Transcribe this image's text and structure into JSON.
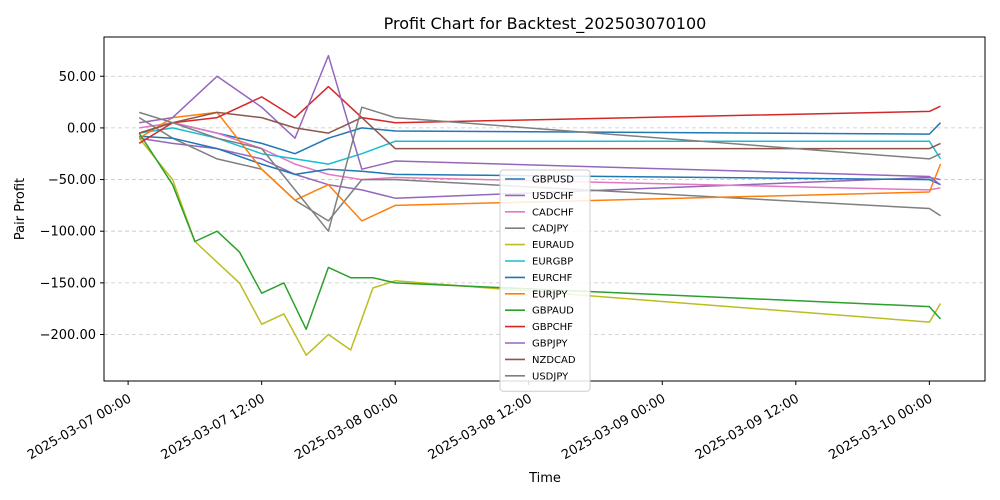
{
  "chart_data": {
    "type": "line",
    "title": "Profit Chart for Backtest_202503070100",
    "xlabel": "Time",
    "ylabel": "Pair Profit",
    "grid": "y-dashed",
    "legend_placement": "center-bottom",
    "xlim": [
      "2025-03-06 21:50",
      "2025-03-10 05:00"
    ],
    "ylim": [
      -245,
      88
    ],
    "xticks": [
      "2025-03-07 00:00",
      "2025-03-07 12:00",
      "2025-03-08 00:00",
      "2025-03-08 12:00",
      "2025-03-09 00:00",
      "2025-03-09 12:00",
      "2025-03-10 00:00"
    ],
    "yticks": [
      50,
      0,
      -50,
      -100,
      -150,
      -200
    ],
    "ytick_labels": [
      "50.00",
      "0.00",
      "−50.00",
      "−100.00",
      "−150.00",
      "−200.00"
    ],
    "series": [
      {
        "name": "GBPUSD",
        "color": "#1f77b4",
        "x": [
          "2025-03-07 01:00",
          "2025-03-07 04:00",
          "2025-03-07 08:00",
          "2025-03-07 12:00",
          "2025-03-07 15:00",
          "2025-03-07 18:00",
          "2025-03-07 21:00",
          "2025-03-08 00:00",
          "2025-03-10 00:00",
          "2025-03-10 01:00"
        ],
        "y": [
          -5,
          5,
          -5,
          -15,
          -25,
          -10,
          0,
          -3,
          -6,
          5
        ]
      },
      {
        "name": "USDCHF",
        "color": "#9467bd",
        "x": [
          "2025-03-07 01:00",
          "2025-03-07 04:00",
          "2025-03-07 08:00",
          "2025-03-07 12:00",
          "2025-03-07 15:00",
          "2025-03-07 18:00",
          "2025-03-07 21:00",
          "2025-03-08 00:00",
          "2025-03-10 00:00",
          "2025-03-10 01:00"
        ],
        "y": [
          -10,
          -15,
          -20,
          -30,
          -45,
          -55,
          -60,
          -68,
          -48,
          -50
        ]
      },
      {
        "name": "CADCHF",
        "color": "#e377c2",
        "x": [
          "2025-03-07 01:00",
          "2025-03-07 04:00",
          "2025-03-07 08:00",
          "2025-03-07 12:00",
          "2025-03-07 15:00",
          "2025-03-07 18:00",
          "2025-03-07 21:00",
          "2025-03-08 00:00",
          "2025-03-10 00:00",
          "2025-03-10 01:00"
        ],
        "y": [
          0,
          5,
          -5,
          -20,
          -35,
          -45,
          -50,
          -48,
          -60,
          -58
        ]
      },
      {
        "name": "CADJPY",
        "color": "#7f7f7f",
        "x": [
          "2025-03-07 01:00",
          "2025-03-07 04:00",
          "2025-03-07 08:00",
          "2025-03-07 12:00",
          "2025-03-07 15:00",
          "2025-03-07 18:00",
          "2025-03-07 21:00",
          "2025-03-08 00:00",
          "2025-03-10 00:00",
          "2025-03-10 01:00"
        ],
        "y": [
          10,
          -10,
          -30,
          -40,
          -70,
          -90,
          -50,
          -50,
          -78,
          -85
        ]
      },
      {
        "name": "EURAUD",
        "color": "#bcbd22",
        "x": [
          "2025-03-07 01:00",
          "2025-03-07 04:00",
          "2025-03-07 06:00",
          "2025-03-07 08:00",
          "2025-03-07 10:00",
          "2025-03-07 12:00",
          "2025-03-07 14:00",
          "2025-03-07 16:00",
          "2025-03-07 18:00",
          "2025-03-07 20:00",
          "2025-03-07 22:00",
          "2025-03-08 00:00",
          "2025-03-10 00:00",
          "2025-03-10 01:00"
        ],
        "y": [
          -10,
          -50,
          -110,
          -130,
          -150,
          -190,
          -180,
          -220,
          -200,
          -215,
          -155,
          -148,
          -188,
          -170
        ]
      },
      {
        "name": "EURGBP",
        "color": "#17becf",
        "x": [
          "2025-03-07 01:00",
          "2025-03-07 04:00",
          "2025-03-07 08:00",
          "2025-03-07 12:00",
          "2025-03-07 15:00",
          "2025-03-07 18:00",
          "2025-03-07 21:00",
          "2025-03-08 00:00",
          "2025-03-10 00:00",
          "2025-03-10 01:00"
        ],
        "y": [
          -5,
          0,
          -10,
          -25,
          -30,
          -35,
          -25,
          -13,
          -13,
          -30
        ]
      },
      {
        "name": "EURCHF",
        "color": "#1f77b4",
        "x": [
          "2025-03-07 01:00",
          "2025-03-07 04:00",
          "2025-03-07 08:00",
          "2025-03-07 12:00",
          "2025-03-07 15:00",
          "2025-03-07 18:00",
          "2025-03-07 21:00",
          "2025-03-08 00:00",
          "2025-03-10 00:00",
          "2025-03-10 01:00"
        ],
        "y": [
          -8,
          -10,
          -20,
          -35,
          -45,
          -40,
          -42,
          -45,
          -50,
          -55
        ]
      },
      {
        "name": "EURJPY",
        "color": "#ff7f0e",
        "x": [
          "2025-03-07 01:00",
          "2025-03-07 04:00",
          "2025-03-07 08:00",
          "2025-03-07 12:00",
          "2025-03-07 15:00",
          "2025-03-07 18:00",
          "2025-03-07 21:00",
          "2025-03-08 00:00",
          "2025-03-10 00:00",
          "2025-03-10 01:00"
        ],
        "y": [
          -10,
          10,
          15,
          -40,
          -70,
          -55,
          -90,
          -75,
          -62,
          -35
        ]
      },
      {
        "name": "GBPAUD",
        "color": "#2ca02c",
        "x": [
          "2025-03-07 01:00",
          "2025-03-07 04:00",
          "2025-03-07 06:00",
          "2025-03-07 08:00",
          "2025-03-07 10:00",
          "2025-03-07 12:00",
          "2025-03-07 14:00",
          "2025-03-07 16:00",
          "2025-03-07 18:00",
          "2025-03-07 20:00",
          "2025-03-07 22:00",
          "2025-03-08 00:00",
          "2025-03-10 00:00",
          "2025-03-10 01:00"
        ],
        "y": [
          -5,
          -55,
          -110,
          -100,
          -120,
          -160,
          -150,
          -195,
          -135,
          -145,
          -145,
          -150,
          -173,
          -185
        ]
      },
      {
        "name": "GBPCHF",
        "color": "#d62728",
        "x": [
          "2025-03-07 01:00",
          "2025-03-07 04:00",
          "2025-03-07 08:00",
          "2025-03-07 12:00",
          "2025-03-07 15:00",
          "2025-03-07 18:00",
          "2025-03-07 21:00",
          "2025-03-08 00:00",
          "2025-03-10 00:00",
          "2025-03-10 01:00"
        ],
        "y": [
          -15,
          5,
          10,
          30,
          10,
          40,
          10,
          5,
          16,
          21
        ]
      },
      {
        "name": "GBPJPY",
        "color": "#9467bd",
        "x": [
          "2025-03-07 01:00",
          "2025-03-07 04:00",
          "2025-03-07 08:00",
          "2025-03-07 12:00",
          "2025-03-07 15:00",
          "2025-03-07 18:00",
          "2025-03-07 21:00",
          "2025-03-08 00:00",
          "2025-03-10 00:00",
          "2025-03-10 01:00"
        ],
        "y": [
          5,
          10,
          50,
          20,
          -10,
          70,
          -40,
          -32,
          -47,
          -55
        ]
      },
      {
        "name": "NZDCAD",
        "color": "#8c564b",
        "x": [
          "2025-03-07 01:00",
          "2025-03-07 04:00",
          "2025-03-07 08:00",
          "2025-03-07 12:00",
          "2025-03-07 15:00",
          "2025-03-07 18:00",
          "2025-03-07 21:00",
          "2025-03-08 00:00",
          "2025-03-10 00:00",
          "2025-03-10 01:00"
        ],
        "y": [
          -5,
          5,
          15,
          10,
          0,
          -5,
          10,
          -20,
          -20,
          -15
        ]
      },
      {
        "name": "USDJPY",
        "color": "#7f7f7f",
        "x": [
          "2025-03-07 01:00",
          "2025-03-07 04:00",
          "2025-03-07 08:00",
          "2025-03-07 12:00",
          "2025-03-07 15:00",
          "2025-03-07 18:00",
          "2025-03-07 21:00",
          "2025-03-08 00:00",
          "2025-03-10 00:00",
          "2025-03-10 01:00"
        ],
        "y": [
          15,
          5,
          -10,
          -20,
          -60,
          -100,
          20,
          10,
          -30,
          -25
        ]
      }
    ]
  }
}
